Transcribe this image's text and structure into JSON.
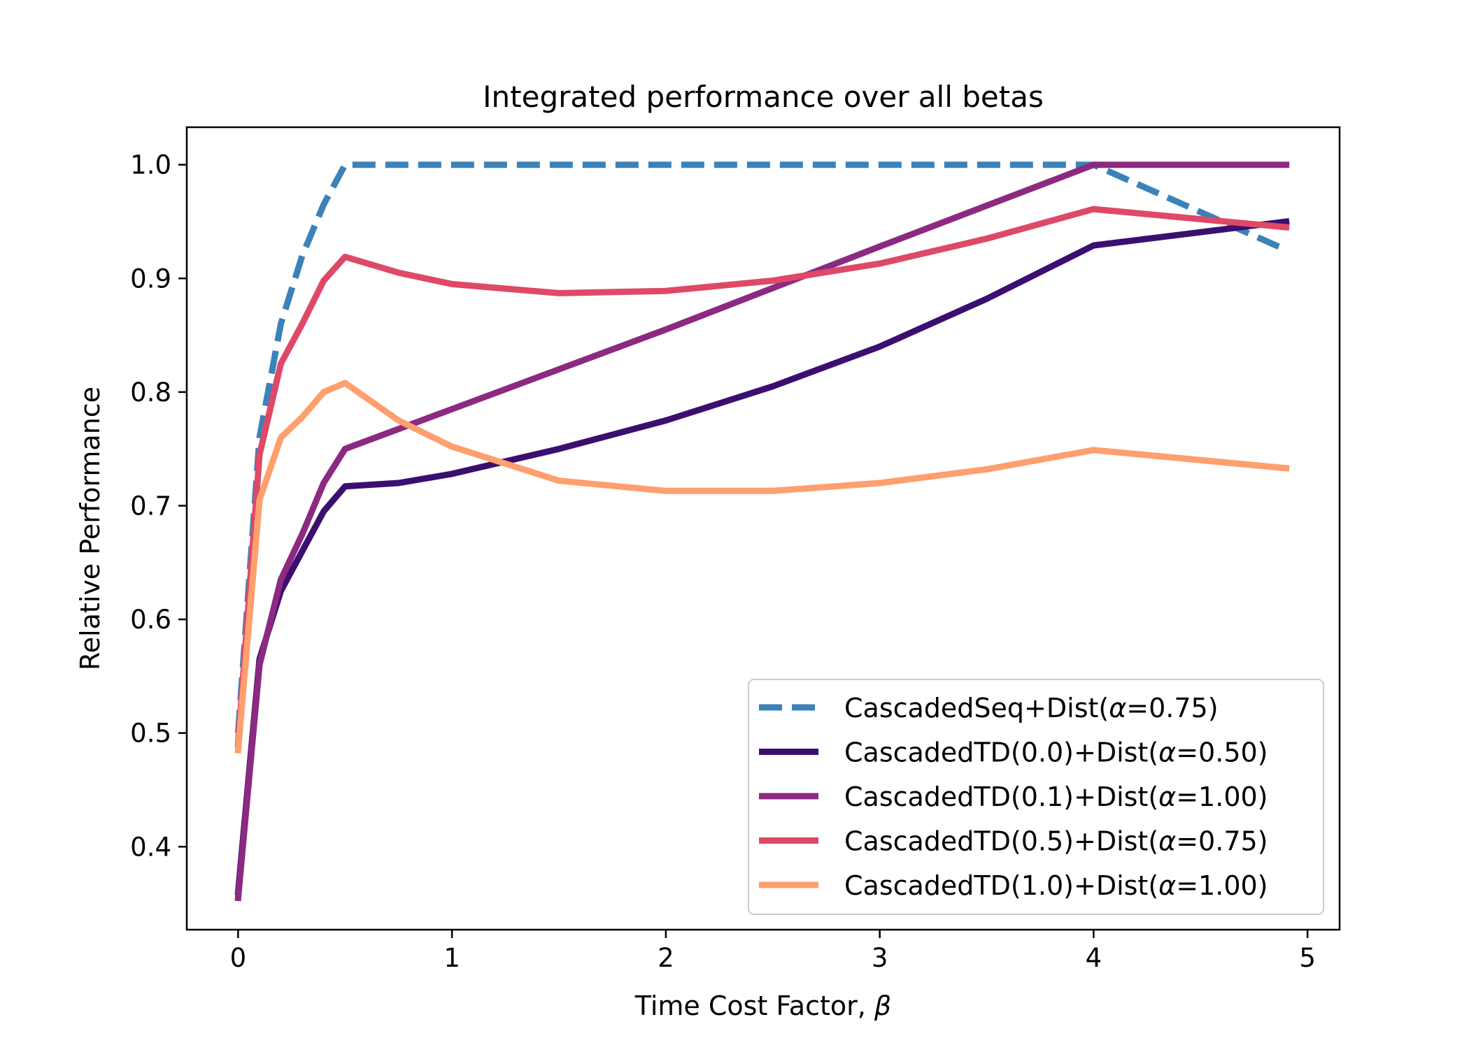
{
  "chart_data": {
    "type": "line",
    "title": "Integrated performance over all betas",
    "xlabel_text": "Time Cost Factor, ",
    "xlabel_symbol": "β",
    "ylabel": "Relative Performance",
    "xlim": [
      -0.24,
      5.15
    ],
    "ylim": [
      0.327,
      1.033
    ],
    "xticks": [
      0,
      1,
      2,
      3,
      4,
      5
    ],
    "yticks": [
      0.4,
      0.5,
      0.6,
      0.7,
      0.8,
      0.9,
      1.0
    ],
    "xtick_labels": [
      "0",
      "1",
      "2",
      "3",
      "4",
      "5"
    ],
    "ytick_labels": [
      "0.4",
      "0.5",
      "0.6",
      "0.7",
      "0.8",
      "0.9",
      "1.0"
    ],
    "grid": false,
    "legend_position": "lower-right",
    "series": [
      {
        "name_parts": [
          "CascadedSeq+Dist(",
          "α",
          "=0.75)"
        ],
        "color": "#3b82b9",
        "dashed": true,
        "x": [
          0,
          0.1,
          0.2,
          0.3,
          0.4,
          0.5,
          1,
          2,
          3,
          4,
          4.9
        ],
        "y": [
          0.5,
          0.76,
          0.86,
          0.92,
          0.965,
          1.0,
          1.0,
          1.0,
          1.0,
          1.0,
          0.925
        ]
      },
      {
        "name_parts": [
          "CascadedTD(0.0)+Dist(",
          "α",
          "=0.50)"
        ],
        "color": "#3b0f70",
        "dashed": false,
        "x": [
          0,
          0.1,
          0.2,
          0.3,
          0.4,
          0.5,
          0.75,
          1,
          1.5,
          2,
          2.5,
          3,
          3.5,
          4,
          4.9
        ],
        "y": [
          0.36,
          0.565,
          0.625,
          0.66,
          0.695,
          0.717,
          0.72,
          0.728,
          0.75,
          0.775,
          0.805,
          0.84,
          0.882,
          0.929,
          0.95
        ]
      },
      {
        "name_parts": [
          "CascadedTD(0.1)+Dist(",
          "α",
          "=1.00)"
        ],
        "color": "#8c2981",
        "dashed": false,
        "x": [
          0,
          0.1,
          0.2,
          0.3,
          0.4,
          0.5,
          1,
          2,
          3,
          4,
          4.9
        ],
        "y": [
          0.355,
          0.56,
          0.635,
          0.675,
          0.72,
          0.75,
          0.785,
          0.855,
          0.928,
          1.0,
          1.0
        ]
      },
      {
        "name_parts": [
          "CascadedTD(0.5)+Dist(",
          "α",
          "=0.75)"
        ],
        "color": "#de4968",
        "dashed": false,
        "x": [
          0,
          0.1,
          0.2,
          0.3,
          0.4,
          0.5,
          0.75,
          1,
          1.5,
          2,
          2.5,
          3,
          3.5,
          4,
          4.9
        ],
        "y": [
          0.49,
          0.745,
          0.825,
          0.86,
          0.898,
          0.919,
          0.905,
          0.895,
          0.887,
          0.889,
          0.898,
          0.913,
          0.935,
          0.961,
          0.945
        ]
      },
      {
        "name_parts": [
          "CascadedTD(1.0)+Dist(",
          "α",
          "=1.00)"
        ],
        "color": "#fe9f6d",
        "dashed": false,
        "x": [
          0,
          0.1,
          0.2,
          0.3,
          0.4,
          0.5,
          0.75,
          1,
          1.5,
          2,
          2.5,
          3,
          3.5,
          4,
          4.9
        ],
        "y": [
          0.485,
          0.705,
          0.76,
          0.778,
          0.8,
          0.808,
          0.775,
          0.752,
          0.722,
          0.713,
          0.713,
          0.72,
          0.732,
          0.749,
          0.733
        ]
      }
    ]
  }
}
